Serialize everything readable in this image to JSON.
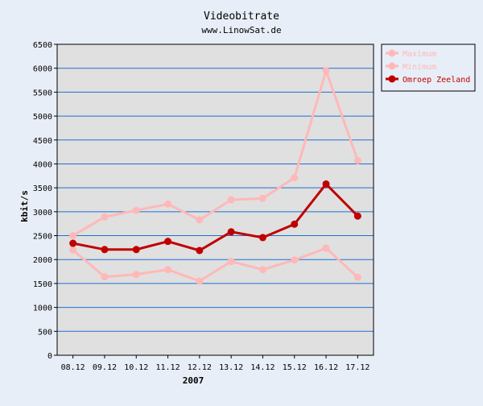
{
  "chart_data": {
    "type": "line",
    "title": "Videobitrate",
    "subtitle": "www.LinowSat.de",
    "xlabel": "2007",
    "ylabel": "kbit/s",
    "categories": [
      "08.12",
      "09.12",
      "10.12",
      "11.12",
      "12.12",
      "13.12",
      "14.12",
      "15.12",
      "16.12",
      "17.12"
    ],
    "ylim": [
      0,
      6500
    ],
    "yticks": [
      0,
      500,
      1000,
      1500,
      2000,
      2500,
      3000,
      3500,
      4000,
      4500,
      5000,
      5500,
      6000,
      6500
    ],
    "grid": true,
    "legend_position": "right",
    "series": [
      {
        "name": "Maximum",
        "color": "#ffb8b8",
        "values": [
          2500,
          2890,
          3030,
          3160,
          2830,
          3250,
          3280,
          3710,
          5950,
          4070
        ]
      },
      {
        "name": "Minimum",
        "color": "#ffb8b8",
        "values": [
          2200,
          1640,
          1690,
          1790,
          1550,
          1960,
          1790,
          1990,
          2240,
          1630
        ]
      },
      {
        "name": "Omroep Zeeland",
        "color": "#c00000",
        "values": [
          2340,
          2210,
          2210,
          2380,
          2190,
          2580,
          2460,
          2740,
          3580,
          2910
        ]
      }
    ]
  },
  "colors": {
    "page_background": "#e8eef7",
    "plot_background": "#e0e0e0",
    "gridline": "#1e6fd0"
  }
}
